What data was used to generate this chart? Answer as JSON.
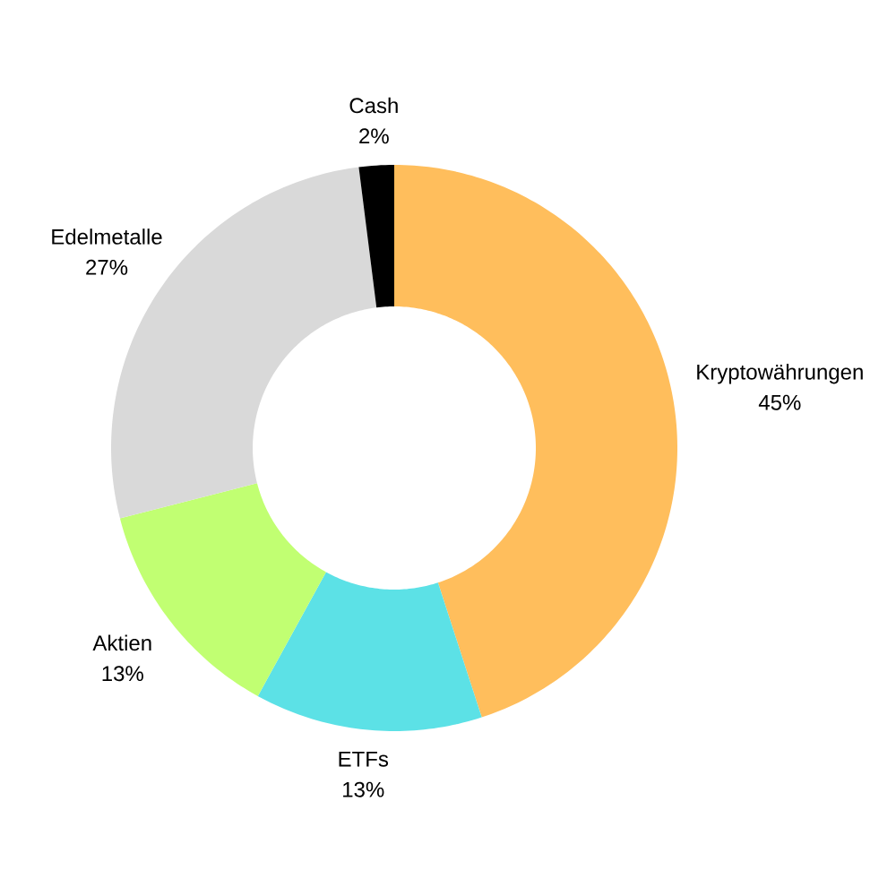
{
  "chart_data": {
    "type": "donut",
    "categories": [
      "Kryptowährungen",
      "ETFs",
      "Aktien",
      "Edelmetalle",
      "Cash"
    ],
    "values": [
      45,
      13,
      13,
      27,
      2
    ],
    "colors": [
      "#ffbe5c",
      "#5ce1e6",
      "#c1ff72",
      "#d9d9d9",
      "#000000"
    ],
    "value_labels": [
      "45%",
      "13%",
      "13%",
      "27%",
      "2%"
    ]
  }
}
